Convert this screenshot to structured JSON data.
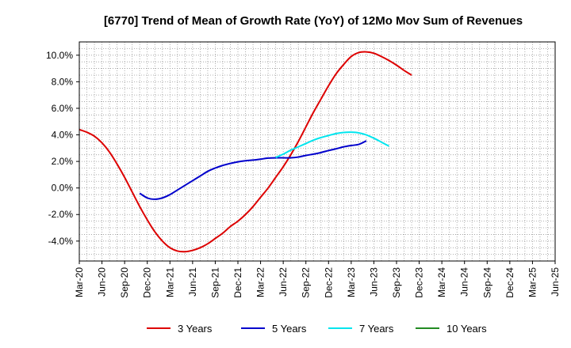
{
  "chart_data": {
    "type": "line",
    "title": "[6770]  Trend of Mean of Growth Rate (YoY) of 12Mo Mov Sum of Revenues",
    "xlabel": "",
    "ylabel": "",
    "x_ticks": [
      "Mar-20",
      "Jun-20",
      "Sep-20",
      "Dec-20",
      "Mar-21",
      "Jun-21",
      "Sep-21",
      "Dec-21",
      "Mar-22",
      "Jun-22",
      "Sep-22",
      "Dec-22",
      "Mar-23",
      "Jun-23",
      "Sep-23",
      "Dec-23",
      "Mar-24",
      "Jun-24",
      "Sep-24",
      "Dec-24",
      "Mar-25",
      "Jun-25"
    ],
    "y_ticks": [
      "-4.0%",
      "-2.0%",
      "0.0%",
      "2.0%",
      "4.0%",
      "6.0%",
      "8.0%",
      "10.0%"
    ],
    "y_tick_values": [
      -4,
      -2,
      0,
      2,
      4,
      6,
      8,
      10
    ],
    "ylim": [
      -5.5,
      11
    ],
    "grid": true,
    "legend_position": "bottom",
    "series": [
      {
        "name": "3 Years",
        "color": "#dd0000",
        "start_index": 0,
        "values": [
          4.4,
          4.2,
          3.9,
          3.4,
          2.7,
          1.8,
          0.8,
          -0.3,
          -1.4,
          -2.4,
          -3.3,
          -4.0,
          -4.5,
          -4.75,
          -4.8,
          -4.7,
          -4.5,
          -4.2,
          -3.8,
          -3.4,
          -2.9,
          -2.5,
          -2.0,
          -1.4,
          -0.7,
          0.0,
          0.8,
          1.6,
          2.5,
          3.5,
          4.6,
          5.7,
          6.7,
          7.7,
          8.6,
          9.3,
          9.9,
          10.2,
          10.25,
          10.15,
          9.9,
          9.6,
          9.25,
          8.85,
          8.5
        ]
      },
      {
        "name": "5 Years",
        "color": "#0000cc",
        "start_index": 8,
        "values": [
          -0.4,
          -0.75,
          -0.85,
          -0.75,
          -0.5,
          -0.15,
          0.2,
          0.55,
          0.9,
          1.25,
          1.5,
          1.7,
          1.85,
          1.97,
          2.05,
          2.1,
          2.17,
          2.25,
          2.27,
          2.27,
          2.27,
          2.33,
          2.45,
          2.55,
          2.67,
          2.82,
          2.95,
          3.1,
          3.2,
          3.28,
          3.55
        ]
      },
      {
        "name": "7 Years",
        "color": "#00e5ee",
        "start_index": 26,
        "values": [
          2.3,
          2.55,
          2.85,
          3.1,
          3.35,
          3.6,
          3.8,
          3.95,
          4.1,
          4.18,
          4.2,
          4.15,
          4.0,
          3.75,
          3.45,
          3.15
        ]
      },
      {
        "name": "10 Years",
        "color": "#228b22",
        "start_index": 0,
        "values": []
      }
    ]
  }
}
